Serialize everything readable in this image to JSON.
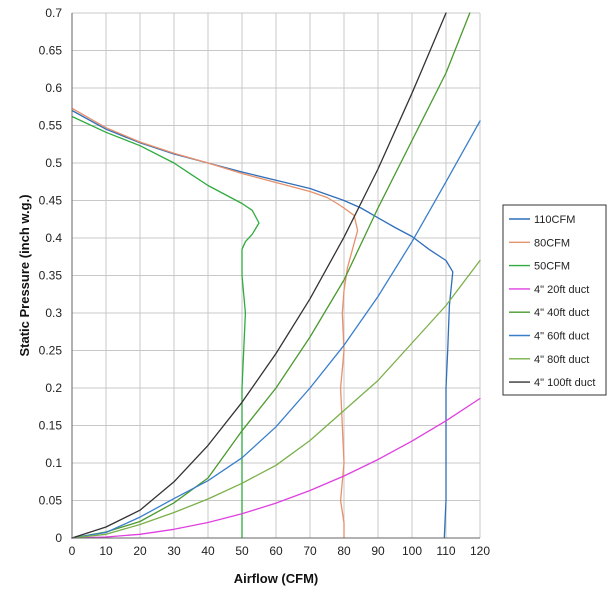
{
  "chart_data": {
    "type": "line",
    "title": "",
    "xlabel": "Airflow (CFM)",
    "ylabel": "Static Pressure (inch w.g.)",
    "xlim": [
      0,
      120
    ],
    "ylim": [
      0,
      0.7
    ],
    "x_ticks": [
      "0",
      "10",
      "20",
      "30",
      "40",
      "50",
      "60",
      "70",
      "80",
      "90",
      "100",
      "110",
      "120"
    ],
    "y_ticks": [
      "0",
      "0.05",
      "0.1",
      "0.15",
      "0.2",
      "0.25",
      "0.3",
      "0.35",
      "0.4",
      "0.45",
      "0.5",
      "0.55",
      "0.6",
      "0.65",
      "0.7"
    ],
    "grid": true,
    "legend_position": "right",
    "series": [
      {
        "name": "110CFM",
        "color": "#2f6fba",
        "points": [
          [
            0,
            0.57
          ],
          [
            10,
            0.545
          ],
          [
            20,
            0.527
          ],
          [
            30,
            0.512
          ],
          [
            40,
            0.5
          ],
          [
            50,
            0.488
          ],
          [
            60,
            0.477
          ],
          [
            70,
            0.466
          ],
          [
            80,
            0.45
          ],
          [
            85,
            0.44
          ],
          [
            90,
            0.427
          ],
          [
            95,
            0.414
          ],
          [
            100,
            0.402
          ],
          [
            105,
            0.385
          ],
          [
            110,
            0.37
          ],
          [
            112,
            0.355
          ],
          [
            111,
            0.31
          ],
          [
            110.5,
            0.25
          ],
          [
            110,
            0.2
          ],
          [
            110,
            0.1
          ],
          [
            110,
            0.05
          ],
          [
            109.5,
            0
          ]
        ]
      },
      {
        "name": "80CFM",
        "color": "#e8906a",
        "points": [
          [
            0,
            0.573
          ],
          [
            10,
            0.547
          ],
          [
            20,
            0.528
          ],
          [
            30,
            0.513
          ],
          [
            40,
            0.5
          ],
          [
            50,
            0.486
          ],
          [
            60,
            0.474
          ],
          [
            70,
            0.462
          ],
          [
            75,
            0.454
          ],
          [
            78,
            0.446
          ],
          [
            80,
            0.44
          ],
          [
            83,
            0.43
          ],
          [
            84,
            0.41
          ],
          [
            81,
            0.36
          ],
          [
            80,
            0.33
          ],
          [
            79.5,
            0.3
          ],
          [
            80,
            0.25
          ],
          [
            79,
            0.2
          ],
          [
            80,
            0.1
          ],
          [
            79,
            0.05
          ],
          [
            80,
            0.02
          ],
          [
            80,
            0
          ]
        ]
      },
      {
        "name": "50CFM",
        "color": "#2eac3e",
        "points": [
          [
            0,
            0.562
          ],
          [
            10,
            0.541
          ],
          [
            20,
            0.523
          ],
          [
            30,
            0.5
          ],
          [
            35,
            0.485
          ],
          [
            40,
            0.47
          ],
          [
            45,
            0.458
          ],
          [
            50,
            0.446
          ],
          [
            53,
            0.437
          ],
          [
            55,
            0.42
          ],
          [
            53,
            0.405
          ],
          [
            51,
            0.395
          ],
          [
            50,
            0.385
          ],
          [
            50,
            0.35
          ],
          [
            51,
            0.3
          ],
          [
            50.5,
            0.25
          ],
          [
            50,
            0.2
          ],
          [
            50,
            0.1
          ],
          [
            50,
            0
          ]
        ]
      },
      {
        "name": "4\" 20ft duct",
        "color": "#e040e0",
        "points": [
          [
            0,
            0
          ],
          [
            10,
            0.0013
          ],
          [
            20,
            0.005
          ],
          [
            30,
            0.0116
          ],
          [
            40,
            0.0207
          ],
          [
            50,
            0.0323
          ],
          [
            60,
            0.0465
          ],
          [
            70,
            0.0633
          ],
          [
            80,
            0.0827
          ],
          [
            90,
            0.1047
          ],
          [
            100,
            0.1292
          ],
          [
            110,
            0.1563
          ],
          [
            120,
            0.186
          ]
        ]
      },
      {
        "name": "4\" 40ft duct",
        "color": "#4a9a2e",
        "points": [
          [
            0,
            0
          ],
          [
            10,
            0.008
          ],
          [
            20,
            0.022
          ],
          [
            30,
            0.047
          ],
          [
            40,
            0.08
          ],
          [
            50,
            0.143
          ],
          [
            60,
            0.2
          ],
          [
            70,
            0.268
          ],
          [
            80,
            0.344
          ],
          [
            90,
            0.44
          ],
          [
            100,
            0.53
          ],
          [
            110,
            0.62
          ],
          [
            117,
            0.7
          ]
        ]
      },
      {
        "name": "4\" 60ft duct",
        "color": "#3a7fcc",
        "points": [
          [
            0,
            0
          ],
          [
            10,
            0.0073
          ],
          [
            20,
            0.0278
          ],
          [
            30,
            0.0525
          ],
          [
            40,
            0.0764
          ],
          [
            50,
            0.1069
          ],
          [
            60,
            0.1483
          ],
          [
            70,
            0.2
          ],
          [
            80,
            0.257
          ],
          [
            90,
            0.322
          ],
          [
            100,
            0.395
          ],
          [
            110,
            0.475
          ],
          [
            120,
            0.556
          ]
        ]
      },
      {
        "name": "4\" 80ft duct",
        "color": "#7ab04a",
        "points": [
          [
            0,
            0
          ],
          [
            10,
            0.005
          ],
          [
            20,
            0.018
          ],
          [
            30,
            0.034
          ],
          [
            40,
            0.052
          ],
          [
            50,
            0.073
          ],
          [
            60,
            0.097
          ],
          [
            70,
            0.13
          ],
          [
            80,
            0.17
          ],
          [
            90,
            0.21
          ],
          [
            100,
            0.26
          ],
          [
            110,
            0.31
          ],
          [
            120,
            0.37
          ]
        ]
      },
      {
        "name": "4\" 100ft duct",
        "color": "#333333",
        "points": [
          [
            0,
            0
          ],
          [
            10,
            0.0147
          ],
          [
            20,
            0.0371
          ],
          [
            30,
            0.075
          ],
          [
            40,
            0.1234
          ],
          [
            50,
            0.181
          ],
          [
            60,
            0.246
          ],
          [
            70,
            0.319
          ],
          [
            80,
            0.401
          ],
          [
            90,
            0.492
          ],
          [
            100,
            0.593
          ],
          [
            103,
            0.625
          ],
          [
            110,
            0.7
          ]
        ]
      }
    ]
  }
}
